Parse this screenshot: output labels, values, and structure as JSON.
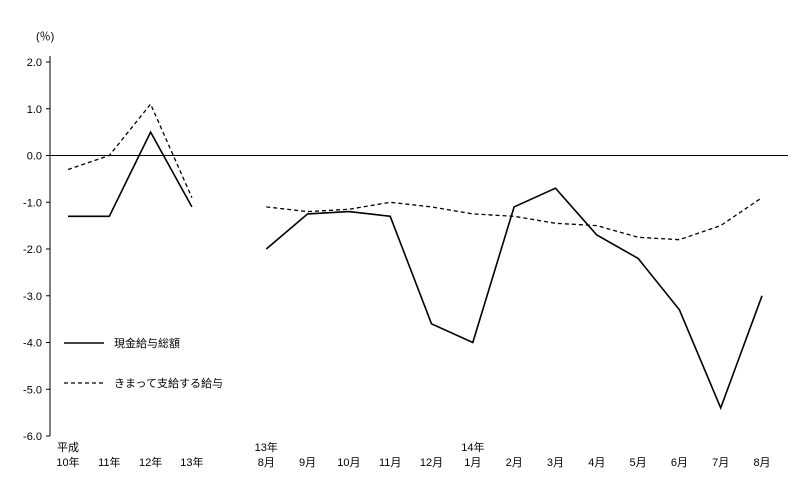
{
  "chart_data": {
    "type": "line",
    "title": "",
    "unit_label": "(％)",
    "ylabel": "",
    "xlabel": "",
    "ylim": [
      -6.0,
      2.0
    ],
    "yticks": [
      "2.0",
      "1.0",
      "0.0",
      "-1.0",
      "-2.0",
      "-3.0",
      "-4.0",
      "-5.0",
      "-6.0"
    ],
    "grid": false,
    "legend_position": "bottom-left",
    "groups": [
      {
        "era_label": "平成",
        "categories": [
          "10年",
          "11年",
          "12年",
          "13年"
        ]
      },
      {
        "era_label": "13年",
        "categories": [
          "8月",
          "9月",
          "10月",
          "11月",
          "12月"
        ]
      },
      {
        "era_label": "14年",
        "categories": [
          "1月",
          "2月",
          "3月",
          "4月",
          "5月",
          "6月",
          "7月",
          "8月"
        ]
      }
    ],
    "series": [
      {
        "name": "現金給与総額",
        "style": "solid",
        "segments": [
          [
            -1.3,
            -1.3,
            0.5,
            -1.1
          ],
          [
            -2.0,
            -1.25,
            -1.2,
            -1.3,
            -3.6,
            -4.0,
            -1.1,
            -0.7,
            -1.7,
            -2.2,
            -3.3,
            -5.4,
            -3.0
          ]
        ]
      },
      {
        "name": "きまって支給する給与",
        "style": "dashed",
        "segments": [
          [
            -0.3,
            0.0,
            1.1,
            -0.9
          ],
          [
            -1.1,
            -1.2,
            -1.15,
            -1.0,
            -1.1,
            -1.25,
            -1.3,
            -1.45,
            -1.5,
            -1.75,
            -1.8,
            -1.5,
            -0.9
          ]
        ]
      }
    ]
  }
}
